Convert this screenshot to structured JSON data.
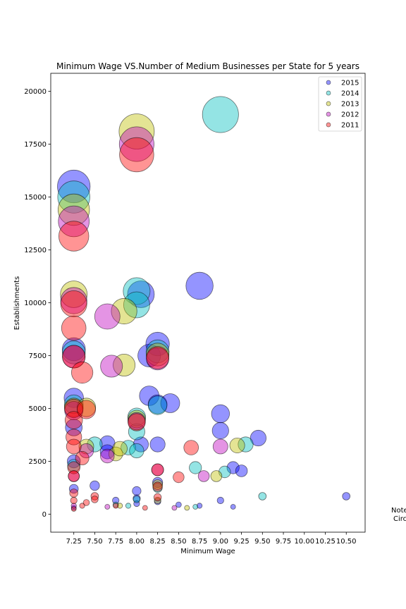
{
  "chart_data": {
    "type": "scatter",
    "title": "Minimum Wage VS.Number of Medium Businesses per State for 5 years",
    "xlabel": "Minimum Wage",
    "ylabel": "Establishments",
    "xlim": [
      6.975,
      10.725
    ],
    "ylim": [
      -850,
      20850
    ],
    "x_ticks": [
      "7.25",
      "7.50",
      "7.75",
      "8.00",
      "8.25",
      "8.50",
      "8.75",
      "9.00",
      "9.25",
      "9.50",
      "9.75",
      "10.00",
      "10.25",
      "10.50"
    ],
    "y_ticks": [
      "0",
      "2500",
      "5000",
      "7500",
      "10000",
      "12500",
      "15000",
      "17500",
      "20000"
    ],
    "legend_position": "top-right",
    "note_text": [
      "Note",
      "Circ"
    ],
    "series": [
      {
        "name": "2015",
        "color": "#0000ff",
        "points": [
          [
            7.25,
            15500
          ],
          [
            7.25,
            7800
          ],
          [
            7.25,
            5500
          ],
          [
            7.25,
            4100
          ],
          [
            7.25,
            2500
          ],
          [
            7.25,
            1200
          ],
          [
            7.25,
            300
          ],
          [
            7.5,
            1350
          ],
          [
            7.65,
            3350
          ],
          [
            7.65,
            2950
          ],
          [
            7.75,
            650
          ],
          [
            8.0,
            1100
          ],
          [
            8.0,
            750
          ],
          [
            8.0,
            500
          ],
          [
            8.05,
            3300
          ],
          [
            8.05,
            10400
          ],
          [
            8.15,
            7500
          ],
          [
            8.15,
            5600
          ],
          [
            8.25,
            8050
          ],
          [
            8.25,
            5200
          ],
          [
            8.25,
            3300
          ],
          [
            8.25,
            1500
          ],
          [
            8.25,
            600
          ],
          [
            8.4,
            5250
          ],
          [
            8.5,
            450
          ],
          [
            8.75,
            10800
          ],
          [
            8.75,
            400
          ],
          [
            9.0,
            4750
          ],
          [
            9.0,
            3950
          ],
          [
            9.0,
            650
          ],
          [
            9.15,
            2200
          ],
          [
            9.15,
            350
          ],
          [
            9.25,
            2050
          ],
          [
            9.45,
            3600
          ],
          [
            10.5,
            850
          ]
        ]
      },
      {
        "name": "2014",
        "color": "#00bfbf",
        "points": [
          [
            7.25,
            15000
          ],
          [
            7.25,
            7650
          ],
          [
            7.25,
            5200
          ],
          [
            7.25,
            2300
          ],
          [
            7.5,
            3300
          ],
          [
            7.75,
            450
          ],
          [
            7.9,
            3150
          ],
          [
            7.9,
            400
          ],
          [
            8.0,
            10550
          ],
          [
            8.0,
            9900
          ],
          [
            8.0,
            3900
          ],
          [
            8.0,
            3000
          ],
          [
            8.0,
            4600
          ],
          [
            8.0,
            700
          ],
          [
            8.25,
            7700
          ],
          [
            8.25,
            5150
          ],
          [
            8.25,
            1250
          ],
          [
            8.7,
            350
          ],
          [
            8.7,
            2200
          ],
          [
            9.0,
            18900
          ],
          [
            9.05,
            2000
          ],
          [
            9.3,
            3300
          ],
          [
            9.5,
            850
          ]
        ]
      },
      {
        "name": "2013",
        "color": "#bfbf00",
        "points": [
          [
            7.25,
            14400
          ],
          [
            7.25,
            10400
          ],
          [
            7.25,
            5050
          ],
          [
            7.4,
            5050
          ],
          [
            7.4,
            3200
          ],
          [
            7.75,
            2850
          ],
          [
            7.8,
            400
          ],
          [
            7.85,
            9600
          ],
          [
            7.85,
            7050
          ],
          [
            8.0,
            18100
          ],
          [
            8.0,
            4500
          ],
          [
            8.25,
            7550
          ],
          [
            8.25,
            1400
          ],
          [
            8.25,
            650
          ],
          [
            8.6,
            300
          ],
          [
            8.95,
            1800
          ],
          [
            9.2,
            3250
          ],
          [
            7.8,
            3100
          ]
        ]
      },
      {
        "name": "2012",
        "color": "#bf00bf",
        "points": [
          [
            7.25,
            13850
          ],
          [
            7.25,
            10100
          ],
          [
            7.25,
            7450
          ],
          [
            7.25,
            4900
          ],
          [
            7.25,
            1800
          ],
          [
            7.25,
            400
          ],
          [
            7.4,
            3000
          ],
          [
            7.65,
            9350
          ],
          [
            7.65,
            2750
          ],
          [
            7.65,
            350
          ],
          [
            7.7,
            7000
          ],
          [
            8.0,
            17500
          ],
          [
            8.0,
            4400
          ],
          [
            8.25,
            7350
          ],
          [
            8.25,
            2100
          ],
          [
            8.45,
            300
          ],
          [
            8.8,
            1800
          ],
          [
            9.0,
            3200
          ]
        ]
      },
      {
        "name": "2011",
        "color": "#ff0000",
        "points": [
          [
            7.25,
            13150
          ],
          [
            7.25,
            9950
          ],
          [
            7.25,
            8800
          ],
          [
            7.25,
            7450
          ],
          [
            7.25,
            5000
          ],
          [
            7.25,
            4450
          ],
          [
            7.25,
            3650
          ],
          [
            7.25,
            3200
          ],
          [
            7.25,
            2200
          ],
          [
            7.25,
            1800
          ],
          [
            7.25,
            1000
          ],
          [
            7.25,
            650
          ],
          [
            7.25,
            250
          ],
          [
            7.35,
            6700
          ],
          [
            7.35,
            2650
          ],
          [
            7.35,
            400
          ],
          [
            7.4,
            4950
          ],
          [
            7.4,
            550
          ],
          [
            7.5,
            850
          ],
          [
            7.5,
            700
          ],
          [
            7.75,
            400
          ],
          [
            8.0,
            17000
          ],
          [
            8.0,
            4350
          ],
          [
            8.1,
            300
          ],
          [
            8.25,
            7400
          ],
          [
            8.25,
            2100
          ],
          [
            8.25,
            1300
          ],
          [
            8.25,
            800
          ],
          [
            8.5,
            1750
          ],
          [
            8.65,
            3150
          ]
        ]
      }
    ]
  }
}
